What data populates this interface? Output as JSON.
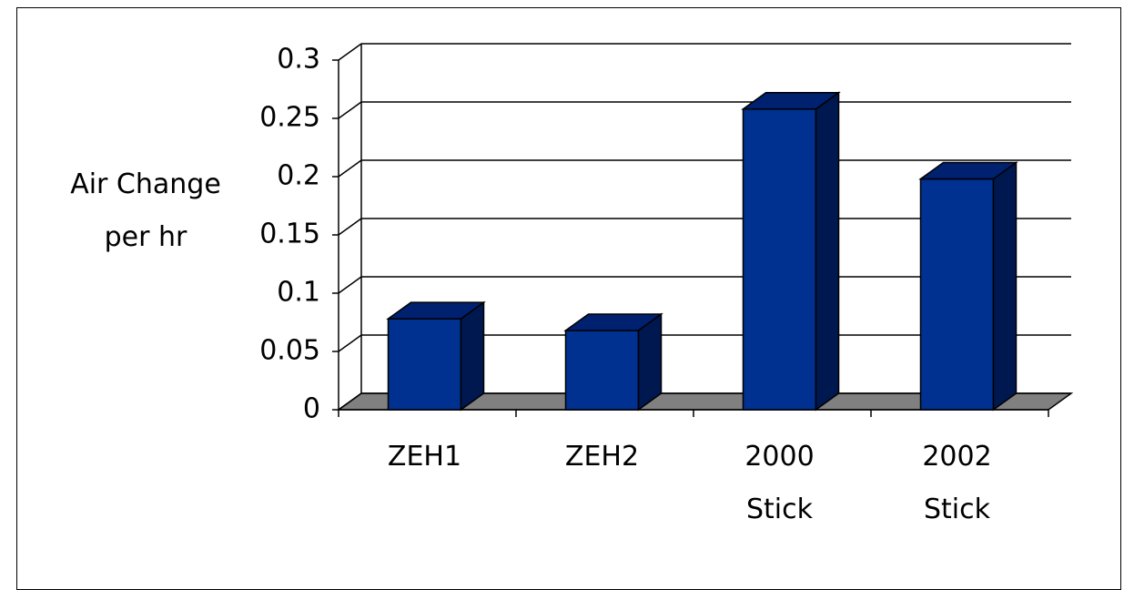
{
  "chart_data": {
    "type": "bar3d",
    "y_label": "Air Change per hr",
    "categories": [
      "ZEH1",
      "ZEH2",
      "2000 Stick",
      "2002 Stick"
    ],
    "values": [
      0.078,
      0.068,
      0.258,
      0.198
    ],
    "color": "#003090",
    "ylim": [
      0,
      0.3
    ],
    "yticks": [
      0,
      0.05,
      0.1,
      0.15,
      0.2,
      0.25,
      0.3
    ],
    "grid": true
  }
}
